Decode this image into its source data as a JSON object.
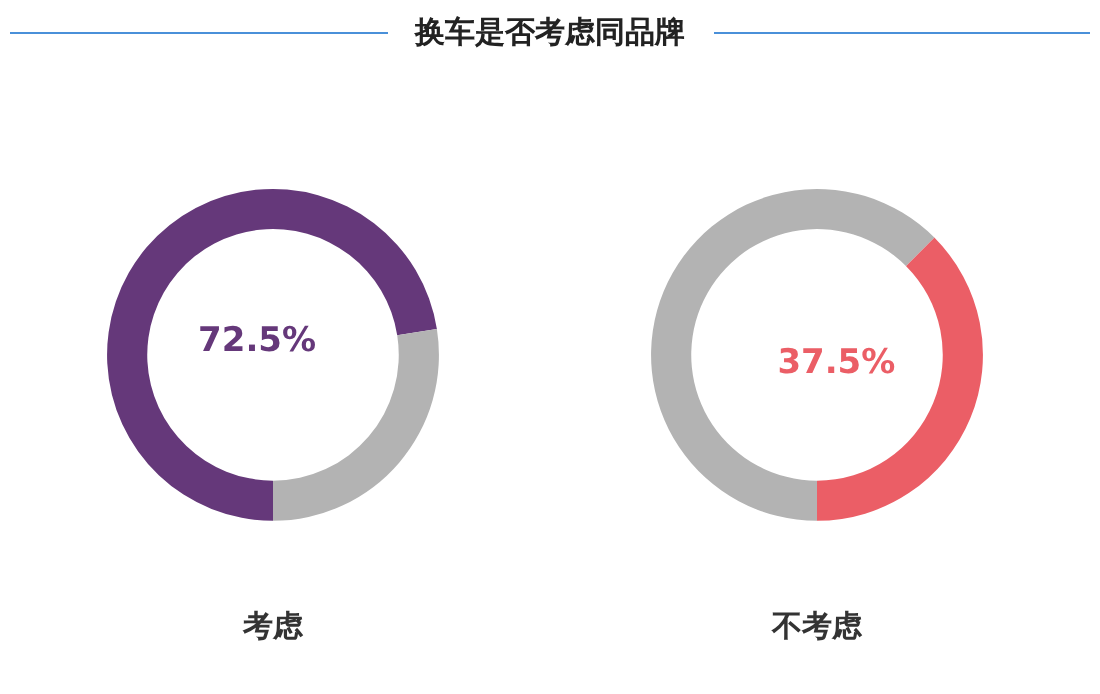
{
  "chart_data": [
    {
      "type": "donut",
      "title": "换车是否考虑同品牌",
      "categories": [
        "考虑",
        null
      ],
      "values": [
        72.5,
        27.5
      ],
      "colors": [
        "#65387a",
        "#b3b3b3"
      ],
      "value_labels": [
        "72.5%",
        null
      ]
    },
    {
      "type": "donut",
      "categories": [
        "不考虑",
        null
      ],
      "values": [
        37.5,
        62.5
      ],
      "colors": [
        "#eb5e66",
        "#b3b3b3"
      ],
      "value_labels": [
        "37.5%",
        null
      ]
    }
  ]
}
